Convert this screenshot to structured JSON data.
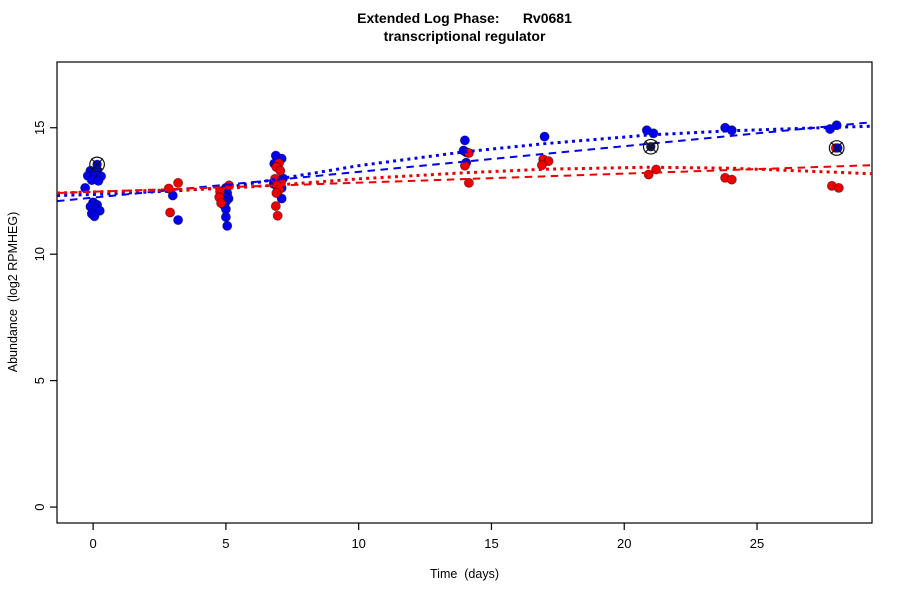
{
  "title": {
    "line1": "Extended Log Phase:      Rv0681",
    "line2": "transcriptional regulator"
  },
  "colors": {
    "blue": "#0000EE",
    "red": "#EE0000",
    "axis": "#000000",
    "flag": "#111111"
  },
  "chart_data": {
    "type": "scatter",
    "title": "Extended Log Phase: Rv0681 transcriptional regulator",
    "xlabel": "Time  (days)",
    "ylabel": "Abundance  (log2 RPMHEG)",
    "xlim": [
      -1.36,
      29.33
    ],
    "ylim": [
      -0.63,
      17.6
    ],
    "x_ticks": [
      0,
      5,
      10,
      15,
      20,
      25
    ],
    "y_ticks": [
      0,
      5,
      10,
      15
    ],
    "grid": false,
    "legend": "none",
    "series": [
      {
        "name": "blue",
        "color": "#0000EE",
        "points": [
          [
            -0.1,
            13.3
          ],
          [
            0.15,
            13.28
          ],
          [
            -0.2,
            13.1
          ],
          [
            0.05,
            13.12
          ],
          [
            0.3,
            13.08
          ],
          [
            -0.05,
            12.93
          ],
          [
            0.2,
            12.9
          ],
          [
            -0.3,
            12.62
          ],
          [
            0.0,
            12.05
          ],
          [
            0.15,
            11.95
          ],
          [
            -0.1,
            11.88
          ],
          [
            0.1,
            11.78
          ],
          [
            0.25,
            11.72
          ],
          [
            -0.05,
            11.6
          ],
          [
            0.05,
            11.5
          ],
          [
            3.0,
            12.32
          ],
          [
            3.2,
            11.35
          ],
          [
            5.0,
            12.62
          ],
          [
            4.88,
            12.5
          ],
          [
            5.05,
            12.42
          ],
          [
            4.95,
            12.3
          ],
          [
            5.1,
            12.2
          ],
          [
            5.0,
            12.08
          ],
          [
            4.92,
            11.95
          ],
          [
            5.0,
            11.78
          ],
          [
            5.0,
            11.47
          ],
          [
            5.05,
            11.12
          ],
          [
            6.88,
            13.9
          ],
          [
            7.1,
            13.78
          ],
          [
            6.82,
            13.58
          ],
          [
            7.15,
            13.0
          ],
          [
            7.0,
            12.9
          ],
          [
            6.8,
            12.78
          ],
          [
            7.1,
            12.62
          ],
          [
            6.95,
            12.5
          ],
          [
            7.1,
            12.2
          ],
          [
            14.0,
            14.5
          ],
          [
            13.95,
            14.1
          ],
          [
            14.05,
            14.03
          ],
          [
            14.05,
            13.62
          ],
          [
            17.0,
            14.65
          ],
          [
            20.85,
            14.9
          ],
          [
            21.1,
            14.78
          ],
          [
            23.8,
            15.0
          ],
          [
            24.05,
            14.9
          ],
          [
            28.0,
            15.1
          ],
          [
            27.75,
            14.95
          ]
        ]
      },
      {
        "name": "red",
        "color": "#EE0000",
        "points": [
          [
            3.2,
            12.82
          ],
          [
            2.85,
            12.6
          ],
          [
            2.9,
            11.65
          ],
          [
            5.12,
            12.72
          ],
          [
            4.78,
            12.48
          ],
          [
            4.75,
            12.25
          ],
          [
            4.82,
            12.02
          ],
          [
            7.0,
            13.6
          ],
          [
            6.9,
            13.45
          ],
          [
            7.05,
            13.3
          ],
          [
            6.85,
            12.98
          ],
          [
            7.08,
            12.85
          ],
          [
            6.92,
            12.72
          ],
          [
            7.0,
            12.55
          ],
          [
            6.9,
            12.42
          ],
          [
            6.88,
            11.9
          ],
          [
            6.95,
            11.52
          ],
          [
            14.15,
            14.0
          ],
          [
            14.0,
            13.5
          ],
          [
            14.15,
            12.82
          ],
          [
            16.95,
            13.75
          ],
          [
            17.15,
            13.68
          ],
          [
            16.9,
            13.52
          ],
          [
            21.2,
            13.35
          ],
          [
            20.92,
            13.15
          ],
          [
            23.8,
            13.02
          ],
          [
            24.05,
            12.95
          ],
          [
            27.82,
            12.7
          ],
          [
            28.08,
            12.62
          ]
        ]
      }
    ],
    "flagged_points": [
      {
        "x": 0.15,
        "y": 13.55,
        "dot_colors": [
          "#0000EE"
        ]
      },
      {
        "x": 21.0,
        "y": 14.25,
        "dot_colors": [
          "#14145a"
        ]
      },
      {
        "x": 28.0,
        "y": 14.2,
        "dot_colors": [
          "#EE0000",
          "#0000EE"
        ]
      }
    ],
    "trend_lines": [
      {
        "name": "blue-linear-fit",
        "color": "#0000EE",
        "style": "dashed",
        "points": [
          [
            -1.36,
            12.1
          ],
          [
            29.33,
            15.22
          ]
        ]
      },
      {
        "name": "blue-smooth-fit",
        "color": "#0000EE",
        "style": "dotted",
        "points": [
          [
            -1.36,
            12.32
          ],
          [
            0,
            12.36
          ],
          [
            3,
            12.5
          ],
          [
            5,
            12.63
          ],
          [
            7,
            12.98
          ],
          [
            10,
            13.5
          ],
          [
            14,
            14.05
          ],
          [
            17,
            14.37
          ],
          [
            21,
            14.72
          ],
          [
            24,
            14.88
          ],
          [
            28,
            15.02
          ],
          [
            29.33,
            15.06
          ]
        ]
      },
      {
        "name": "red-linear-fit",
        "color": "#EE0000",
        "style": "dashed",
        "points": [
          [
            -1.36,
            12.42
          ],
          [
            29.33,
            13.52
          ]
        ]
      },
      {
        "name": "red-smooth-fit",
        "color": "#EE0000",
        "style": "dotted",
        "points": [
          [
            -1.36,
            12.42
          ],
          [
            0,
            12.46
          ],
          [
            3,
            12.54
          ],
          [
            5,
            12.6
          ],
          [
            7,
            12.74
          ],
          [
            10,
            12.98
          ],
          [
            14,
            13.22
          ],
          [
            17,
            13.36
          ],
          [
            21,
            13.44
          ],
          [
            24,
            13.4
          ],
          [
            28,
            13.24
          ],
          [
            29.33,
            13.18
          ]
        ]
      }
    ]
  }
}
